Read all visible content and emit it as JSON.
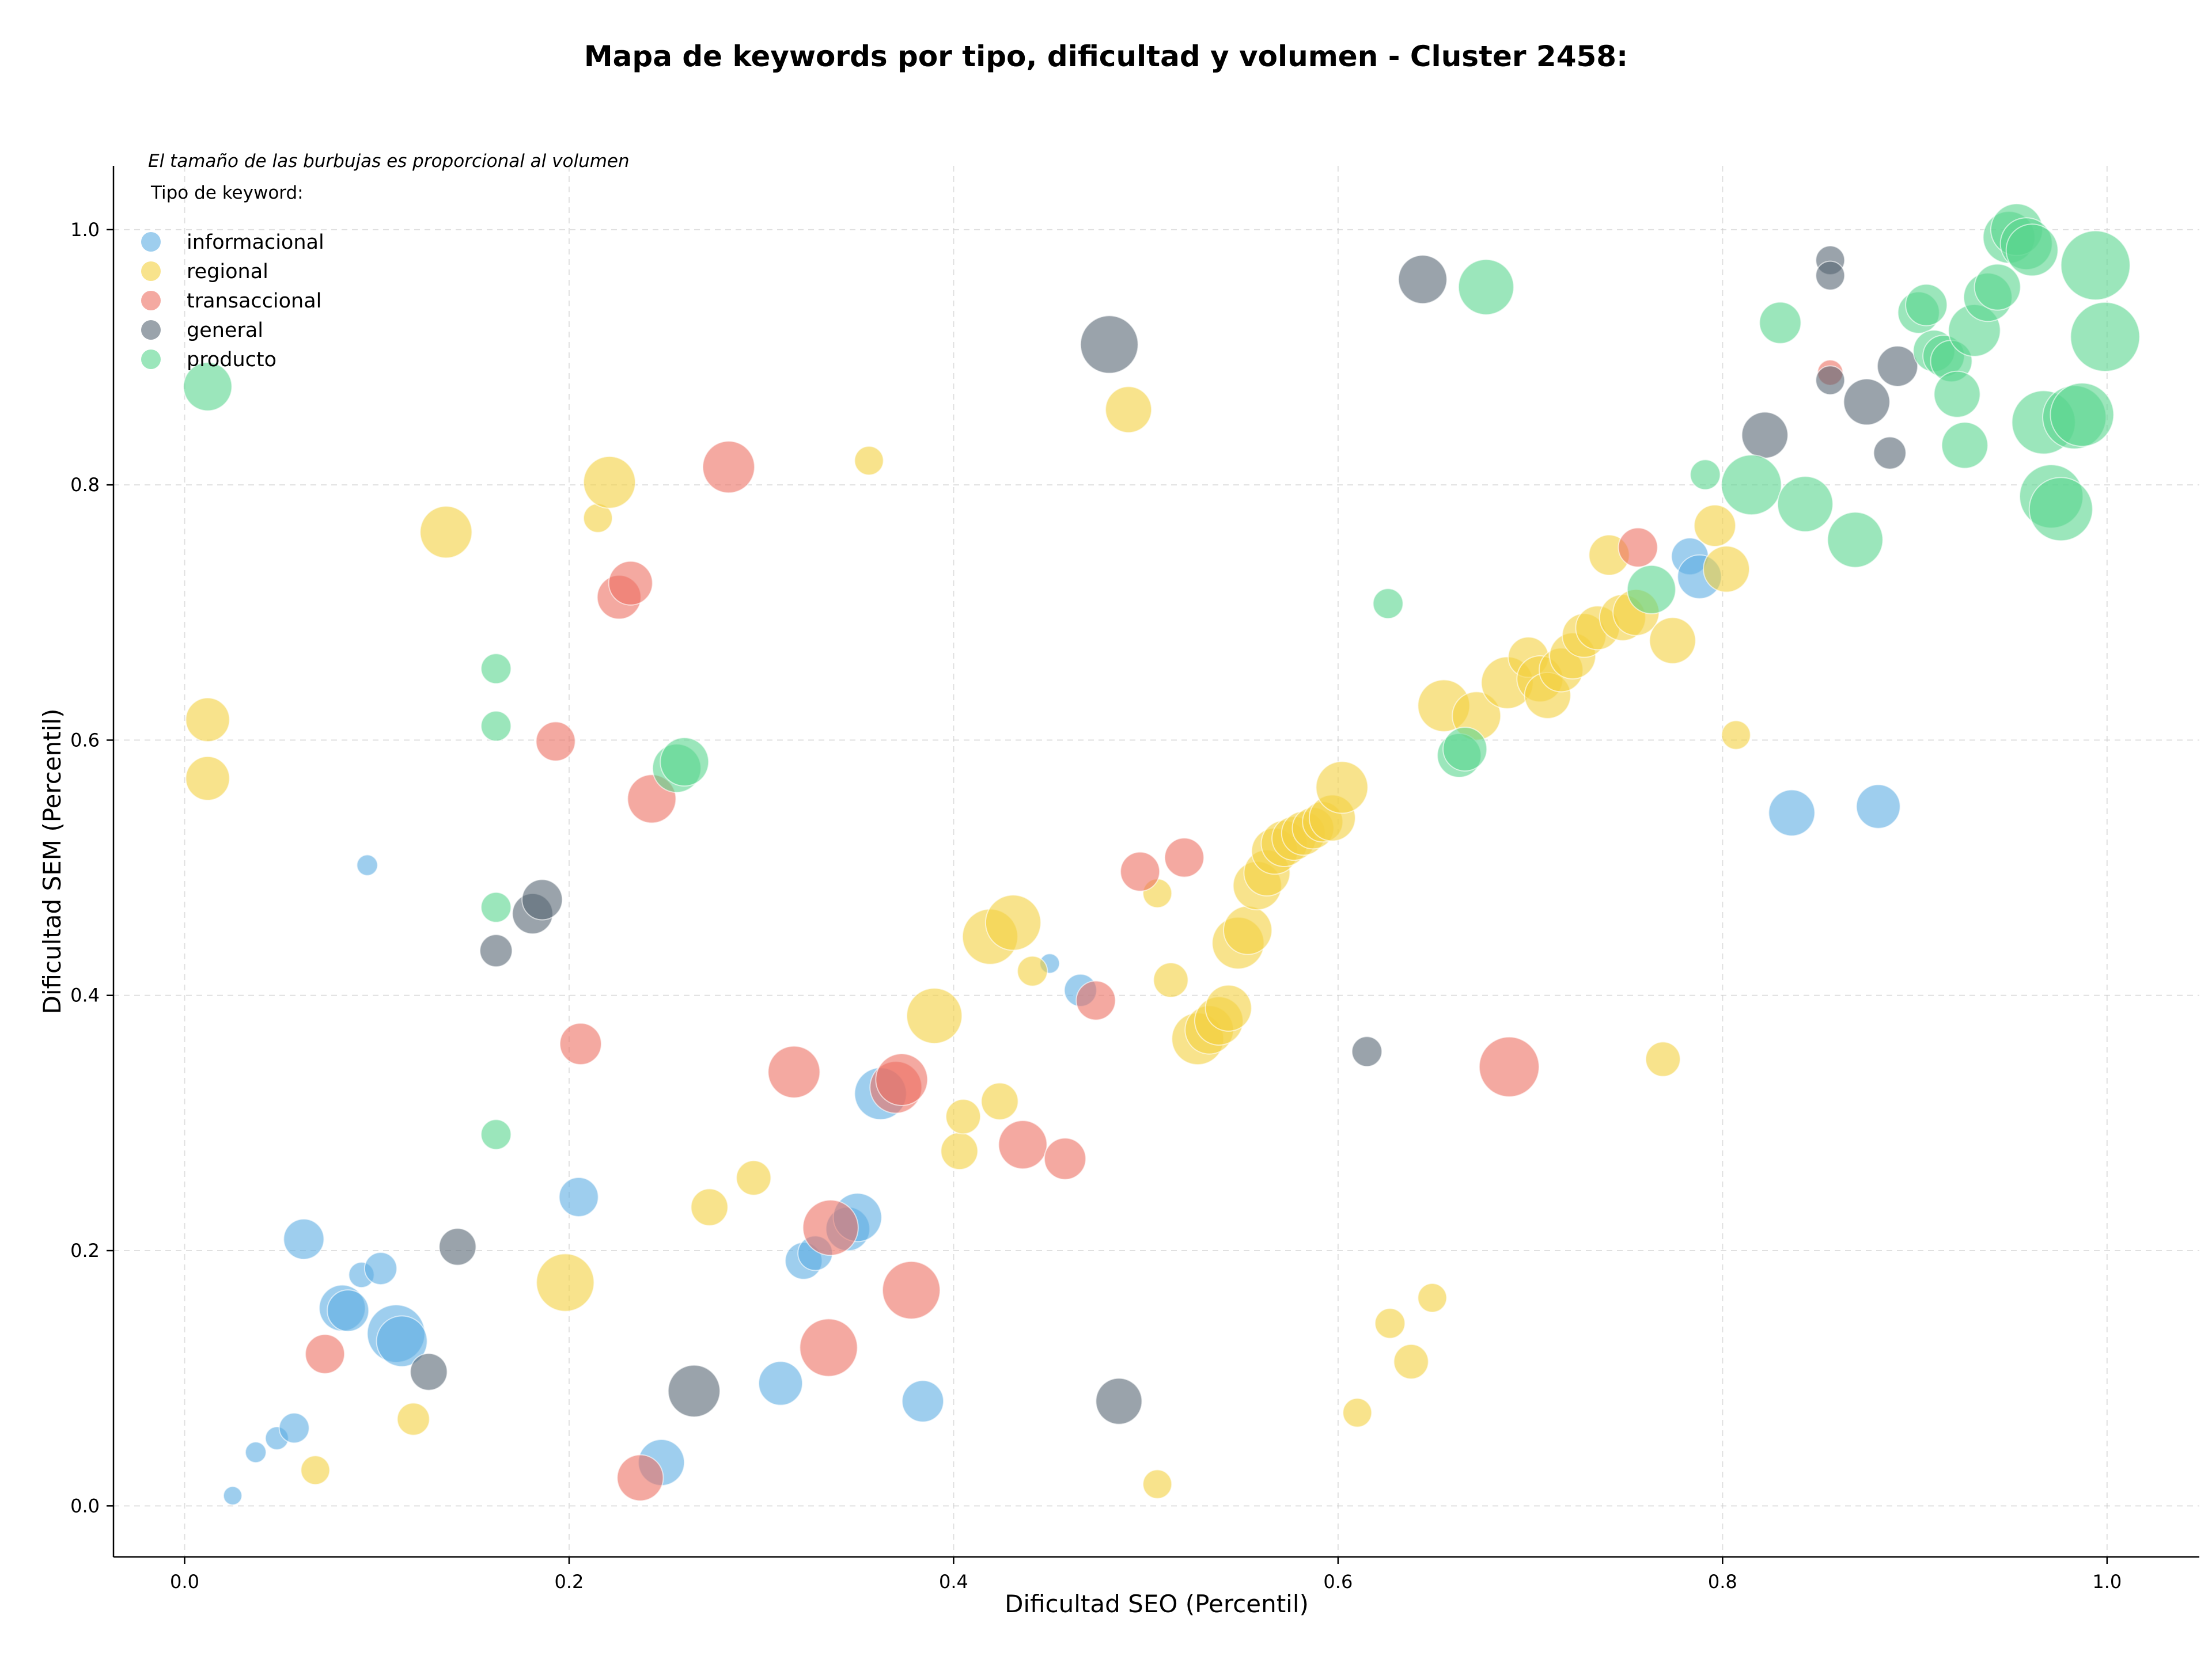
{
  "chart_data": {
    "type": "scatter",
    "title": "Mapa de keywords por tipo, dificultad y volumen - Cluster 2458:",
    "xlabel": "Dificultad SEO (Percentil)",
    "ylabel": "Dificultad SEM (Percentil)",
    "xlim": [
      -0.037,
      1.048
    ],
    "ylim": [
      -0.04,
      1.05
    ],
    "xticks": [
      "0.0",
      "0.2",
      "0.4",
      "0.6",
      "0.8",
      "1.0"
    ],
    "yticks": [
      "0.0",
      "0.2",
      "0.4",
      "0.6",
      "0.8",
      "1.0"
    ],
    "grid": true,
    "note": "El tamaño de las burbujas es proporcional al volumen",
    "legend_title": "Tipo de keyword:",
    "legend_position": "top-left",
    "series": [
      {
        "name": "informacional",
        "color": "#5dade2",
        "points": [
          [
            0.025,
            0.008,
            16
          ],
          [
            0.037,
            0.042,
            18
          ],
          [
            0.048,
            0.053,
            20
          ],
          [
            0.057,
            0.061,
            26
          ],
          [
            0.062,
            0.209,
            35
          ],
          [
            0.092,
            0.181,
            22
          ],
          [
            0.102,
            0.186,
            28
          ],
          [
            0.082,
            0.155,
            40
          ],
          [
            0.085,
            0.153,
            36
          ],
          [
            0.095,
            0.502,
            18
          ],
          [
            0.11,
            0.135,
            50
          ],
          [
            0.113,
            0.129,
            44
          ],
          [
            0.205,
            0.242,
            34
          ],
          [
            0.248,
            0.034,
            40
          ],
          [
            0.31,
            0.096,
            38
          ],
          [
            0.322,
            0.192,
            32
          ],
          [
            0.328,
            0.198,
            30
          ],
          [
            0.345,
            0.217,
            38
          ],
          [
            0.35,
            0.226,
            42
          ],
          [
            0.362,
            0.323,
            45
          ],
          [
            0.384,
            0.082,
            36
          ],
          [
            0.45,
            0.425,
            17
          ],
          [
            0.466,
            0.404,
            28
          ],
          [
            0.783,
            0.744,
            32
          ],
          [
            0.788,
            0.728,
            38
          ],
          [
            0.836,
            0.543,
            40
          ],
          [
            0.881,
            0.548,
            38
          ]
        ]
      },
      {
        "name": "regional",
        "color": "#f4d03f",
        "points": [
          [
            0.012,
            0.616,
            38
          ],
          [
            0.012,
            0.57,
            38
          ],
          [
            0.068,
            0.028,
            25
          ],
          [
            0.119,
            0.068,
            28
          ],
          [
            0.136,
            0.763,
            45
          ],
          [
            0.198,
            0.175,
            50
          ],
          [
            0.215,
            0.774,
            25
          ],
          [
            0.221,
            0.802,
            45
          ],
          [
            0.273,
            0.234,
            32
          ],
          [
            0.296,
            0.257,
            30
          ],
          [
            0.356,
            0.819,
            25
          ],
          [
            0.39,
            0.384,
            48
          ],
          [
            0.403,
            0.278,
            32
          ],
          [
            0.405,
            0.305,
            30
          ],
          [
            0.419,
            0.446,
            48
          ],
          [
            0.424,
            0.317,
            32
          ],
          [
            0.431,
            0.457,
            48
          ],
          [
            0.441,
            0.419,
            26
          ],
          [
            0.491,
            0.859,
            40
          ],
          [
            0.506,
            0.48,
            25
          ],
          [
            0.506,
            0.017,
            25
          ],
          [
            0.513,
            0.412,
            30
          ],
          [
            0.527,
            0.366,
            45
          ],
          [
            0.533,
            0.373,
            42
          ],
          [
            0.538,
            0.38,
            42
          ],
          [
            0.543,
            0.39,
            40
          ],
          [
            0.548,
            0.441,
            45
          ],
          [
            0.553,
            0.451,
            42
          ],
          [
            0.558,
            0.486,
            42
          ],
          [
            0.563,
            0.496,
            40
          ],
          [
            0.567,
            0.513,
            40
          ],
          [
            0.572,
            0.519,
            40
          ],
          [
            0.577,
            0.523,
            38
          ],
          [
            0.582,
            0.527,
            38
          ],
          [
            0.587,
            0.531,
            36
          ],
          [
            0.592,
            0.536,
            35
          ],
          [
            0.597,
            0.539,
            40
          ],
          [
            0.602,
            0.563,
            45
          ],
          [
            0.61,
            0.073,
            25
          ],
          [
            0.627,
            0.143,
            26
          ],
          [
            0.638,
            0.113,
            30
          ],
          [
            0.649,
            0.163,
            25
          ],
          [
            0.655,
            0.627,
            45
          ],
          [
            0.672,
            0.619,
            42
          ],
          [
            0.688,
            0.645,
            45
          ],
          [
            0.699,
            0.665,
            35
          ],
          [
            0.705,
            0.648,
            40
          ],
          [
            0.709,
            0.635,
            40
          ],
          [
            0.716,
            0.655,
            38
          ],
          [
            0.722,
            0.666,
            40
          ],
          [
            0.728,
            0.682,
            38
          ],
          [
            0.735,
            0.688,
            38
          ],
          [
            0.741,
            0.745,
            35
          ],
          [
            0.748,
            0.696,
            40
          ],
          [
            0.755,
            0.7,
            40
          ],
          [
            0.769,
            0.35,
            30
          ],
          [
            0.774,
            0.678,
            40
          ],
          [
            0.796,
            0.768,
            36
          ],
          [
            0.802,
            0.734,
            40
          ],
          [
            0.807,
            0.604,
            25
          ]
        ]
      },
      {
        "name": "transaccional",
        "color": "#ec7063",
        "points": [
          [
            0.073,
            0.119,
            34
          ],
          [
            0.193,
            0.599,
            34
          ],
          [
            0.206,
            0.362,
            36
          ],
          [
            0.226,
            0.712,
            38
          ],
          [
            0.232,
            0.723,
            38
          ],
          [
            0.237,
            0.022,
            40
          ],
          [
            0.243,
            0.554,
            42
          ],
          [
            0.283,
            0.814,
            45
          ],
          [
            0.317,
            0.34,
            45
          ],
          [
            0.335,
            0.124,
            50
          ],
          [
            0.336,
            0.218,
            48
          ],
          [
            0.37,
            0.328,
            45
          ],
          [
            0.373,
            0.334,
            45
          ],
          [
            0.378,
            0.169,
            50
          ],
          [
            0.436,
            0.283,
            42
          ],
          [
            0.458,
            0.272,
            36
          ],
          [
            0.474,
            0.396,
            34
          ],
          [
            0.497,
            0.497,
            34
          ],
          [
            0.52,
            0.508,
            34
          ],
          [
            0.689,
            0.344,
            52
          ],
          [
            0.756,
            0.751,
            34
          ],
          [
            0.856,
            0.888,
            22
          ]
        ]
      },
      {
        "name": "general",
        "color": "#566573",
        "points": [
          [
            0.127,
            0.105,
            32
          ],
          [
            0.142,
            0.203,
            32
          ],
          [
            0.162,
            0.435,
            28
          ],
          [
            0.181,
            0.464,
            35
          ],
          [
            0.186,
            0.475,
            35
          ],
          [
            0.265,
            0.09,
            45
          ],
          [
            0.481,
            0.91,
            50
          ],
          [
            0.486,
            0.082,
            40
          ],
          [
            0.615,
            0.356,
            26
          ],
          [
            0.644,
            0.961,
            42
          ],
          [
            0.822,
            0.839,
            40
          ],
          [
            0.856,
            0.976,
            25
          ],
          [
            0.856,
            0.964,
            25
          ],
          [
            0.856,
            0.882,
            25
          ],
          [
            0.875,
            0.865,
            40
          ],
          [
            0.887,
            0.825,
            28
          ],
          [
            0.891,
            0.893,
            35
          ]
        ]
      },
      {
        "name": "producto",
        "color": "#58d68d",
        "points": [
          [
            0.012,
            0.877,
            42
          ],
          [
            0.162,
            0.656,
            26
          ],
          [
            0.162,
            0.611,
            26
          ],
          [
            0.162,
            0.469,
            26
          ],
          [
            0.162,
            0.291,
            26
          ],
          [
            0.256,
            0.578,
            42
          ],
          [
            0.26,
            0.583,
            42
          ],
          [
            0.626,
            0.707,
            26
          ],
          [
            0.663,
            0.588,
            38
          ],
          [
            0.666,
            0.593,
            38
          ],
          [
            0.677,
            0.955,
            48
          ],
          [
            0.763,
            0.718,
            42
          ],
          [
            0.791,
            0.808,
            26
          ],
          [
            0.815,
            0.8,
            52
          ],
          [
            0.83,
            0.927,
            36
          ],
          [
            0.843,
            0.785,
            48
          ],
          [
            0.869,
            0.757,
            48
          ],
          [
            0.902,
            0.935,
            36
          ],
          [
            0.906,
            0.941,
            36
          ],
          [
            0.91,
            0.905,
            36
          ],
          [
            0.915,
            0.901,
            36
          ],
          [
            0.919,
            0.897,
            36
          ],
          [
            0.922,
            0.871,
            40
          ],
          [
            0.926,
            0.831,
            40
          ],
          [
            0.931,
            0.921,
            45
          ],
          [
            0.938,
            0.947,
            42
          ],
          [
            0.943,
            0.955,
            40
          ],
          [
            0.949,
            0.994,
            45
          ],
          [
            0.953,
            1.0,
            45
          ],
          [
            0.958,
            0.989,
            45
          ],
          [
            0.961,
            0.984,
            45
          ],
          [
            0.967,
            0.849,
            55
          ],
          [
            0.971,
            0.791,
            55
          ],
          [
            0.976,
            0.781,
            55
          ],
          [
            0.983,
            0.853,
            55
          ],
          [
            0.987,
            0.855,
            55
          ],
          [
            0.994,
            0.972,
            60
          ],
          [
            0.999,
            0.916,
            60
          ]
        ]
      }
    ]
  }
}
